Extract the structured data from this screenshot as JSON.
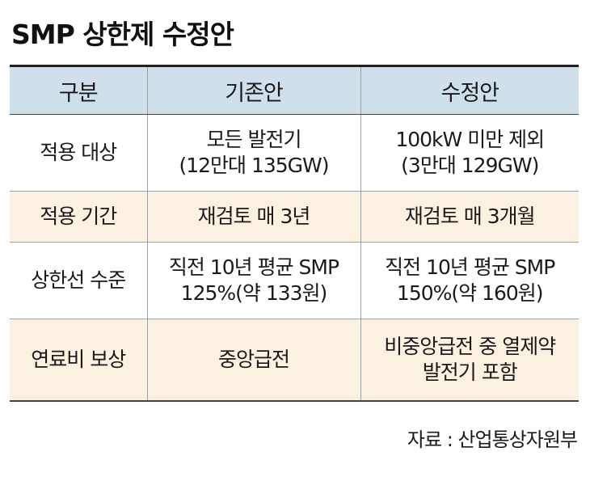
{
  "title": "SMP 상한제 수정안",
  "table": {
    "headers": [
      "구분",
      "기존안",
      "수정안"
    ],
    "rows": [
      {
        "label": "적용 대상",
        "existing": [
          "모든 발전기",
          "(12만대 135GW)"
        ],
        "revised": [
          "100kW 미만 제외",
          "(3만대 129GW)"
        ]
      },
      {
        "label": "적용 기간",
        "existing": [
          "재검토 매 3년"
        ],
        "revised": [
          "재검토 매 3개월"
        ]
      },
      {
        "label": "상한선 수준",
        "existing": [
          "직전 10년 평균 SMP",
          "125%(약 133원)"
        ],
        "revised": [
          "직전 10년 평균 SMP",
          "150%(약 160원)"
        ]
      },
      {
        "label": "연료비 보상",
        "existing": [
          "중앙급전"
        ],
        "revised": [
          "비중앙급전 중 열제약",
          "발전기 포함"
        ]
      }
    ]
  },
  "source": "자료 : 산업통상자원부",
  "colors": {
    "header_bg": "#cfe0ea",
    "alt_row_bg": "#fbf1e1"
  }
}
